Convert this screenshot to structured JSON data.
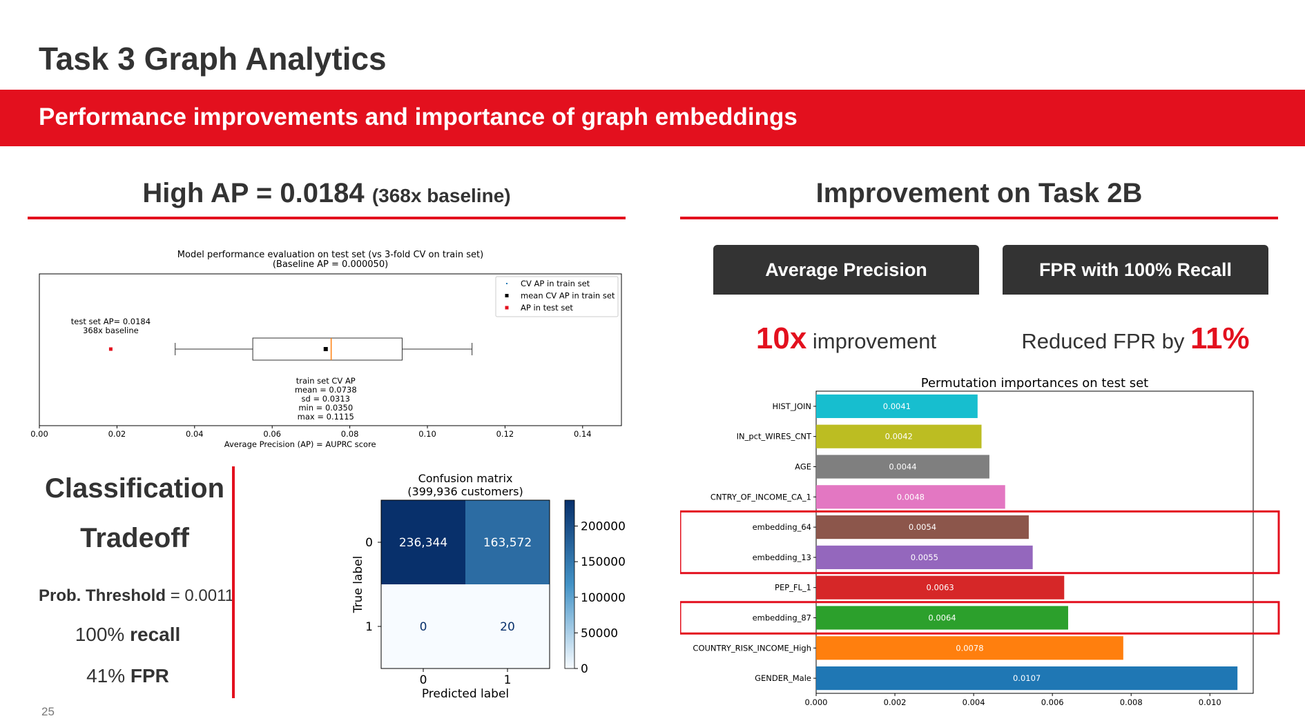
{
  "slide": {
    "title": "Task 3 Graph Analytics",
    "banner": "Performance improvements and importance of graph embeddings",
    "page_number": "25"
  },
  "left_section": {
    "heading": "High AP = 0.0184",
    "heading_suffix": "(368x baseline)"
  },
  "right_section": {
    "heading": "Improvement on Task 2B",
    "box1": "Average Precision",
    "box2": "FPR with 100% Recall",
    "stat1_big": "10x",
    "stat1_text": "improvement",
    "stat2_text": "Reduced FPR by",
    "stat2_big": "11%"
  },
  "classification": {
    "title_line1": "Classification",
    "title_line2": "Tradeoff",
    "threshold_label": "Prob. Threshold",
    "threshold_value": "= 0.0011",
    "recall_value": "100%",
    "recall_label": "recall",
    "fpr_value": "41%",
    "fpr_label": "FPR"
  },
  "chart_data": [
    {
      "type": "boxplot",
      "title": "Model performance evaluation on test set (vs 3-fold CV on train set)",
      "subtitle": "(Baseline AP = 0.000050)",
      "xlabel": "Average Precision (AP) = AUPRC score",
      "xlim": [
        0.0,
        0.15
      ],
      "xticks": [
        0.0,
        0.02,
        0.04,
        0.06,
        0.08,
        0.1,
        0.12,
        0.14
      ],
      "xtick_labels": [
        "0.00",
        "0.02",
        "0.04",
        "0.06",
        "0.08",
        "0.10",
        "0.12",
        "0.14"
      ],
      "legend": [
        "CV AP in train set",
        "mean CV AP in train set",
        "AP in test set"
      ],
      "legend_position": "top-right",
      "box": {
        "min": 0.035,
        "q1": 0.055,
        "median": 0.0752,
        "q3": 0.0935,
        "max": 0.1115,
        "mean": 0.0738
      },
      "test_ap": 0.0184,
      "annotation_test": [
        "test set AP= 0.0184",
        "368x baseline"
      ],
      "annotation_train": [
        "train set CV AP",
        "mean = 0.0738",
        "sd = 0.0313",
        "min = 0.0350",
        "max = 0.1115"
      ],
      "colors": {
        "legend_cv": "#1f77b4",
        "mean": "#000000",
        "test": "#e3101e",
        "median": "#ff7f0e"
      }
    },
    {
      "type": "heatmap",
      "title": "Confusion matrix",
      "subtitle": "(399,936 customers)",
      "xlabel": "Predicted label",
      "ylabel": "True label",
      "x_ticks": [
        "0",
        "1"
      ],
      "y_ticks": [
        "0",
        "1"
      ],
      "values": [
        [
          236344,
          163572
        ],
        [
          0,
          20
        ]
      ],
      "cell_labels": [
        [
          "236,344",
          "163,572"
        ],
        [
          "0",
          "20"
        ]
      ],
      "colorbar_ticks": [
        0,
        50000,
        100000,
        150000,
        200000
      ],
      "colorbar_labels": [
        "0",
        "50000",
        "100000",
        "150000",
        "200000"
      ],
      "colorbar_range": [
        0,
        236344
      ]
    },
    {
      "type": "bar",
      "orientation": "horizontal",
      "title": "Permutation importances on test set",
      "categories": [
        "HIST_JOIN",
        "IN_pct_WIRES_CNT",
        "AGE",
        "CNTRY_OF_INCOME_CA_1",
        "embedding_64",
        "embedding_13",
        "PEP_FL_1",
        "embedding_87",
        "COUNTRY_RISK_INCOME_High",
        "GENDER_Male"
      ],
      "values": [
        0.0041,
        0.0042,
        0.0044,
        0.0048,
        0.0054,
        0.0055,
        0.0063,
        0.0064,
        0.0078,
        0.0107
      ],
      "value_labels": [
        "0.0041",
        "0.0042",
        "0.0044",
        "0.0048",
        "0.0054",
        "0.0055",
        "0.0063",
        "0.0064",
        "0.0078",
        "0.0107"
      ],
      "colors": [
        "#17becf",
        "#bcbd22",
        "#7f7f7f",
        "#e377c2",
        "#8c564b",
        "#9467bd",
        "#d62728",
        "#2ca02c",
        "#ff7f0e",
        "#1f77b4"
      ],
      "xlim": [
        0,
        0.0111
      ],
      "xticks": [
        0,
        0.002,
        0.004,
        0.006,
        0.008,
        0.01
      ],
      "xtick_labels": [
        "0.000",
        "0.002",
        "0.004",
        "0.006",
        "0.008",
        "0.010"
      ],
      "highlighted": [
        "embedding_64",
        "embedding_13",
        "embedding_87"
      ],
      "highlight_color": "#e3101e"
    }
  ]
}
